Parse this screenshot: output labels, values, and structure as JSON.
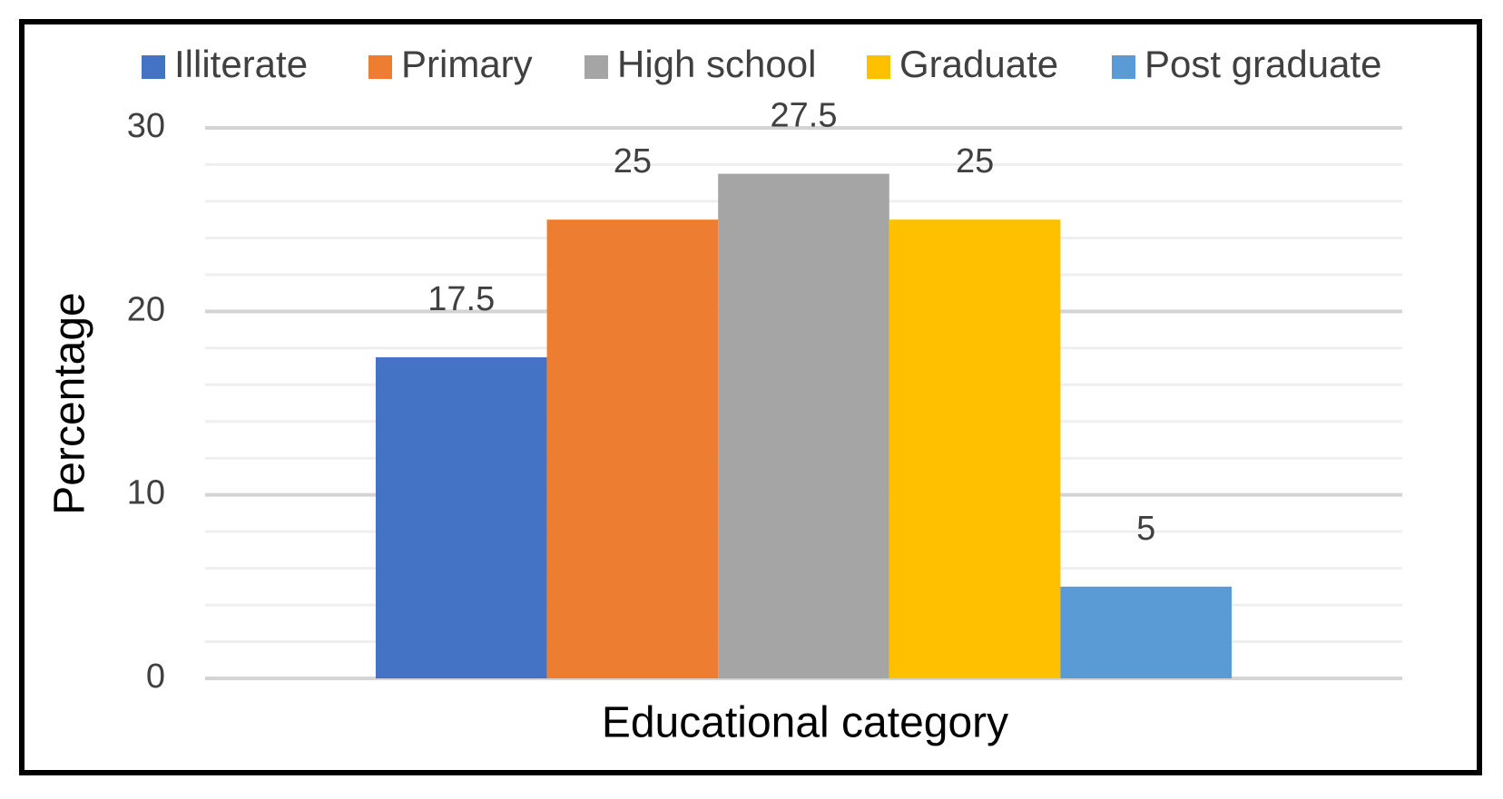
{
  "chart_data": {
    "type": "bar",
    "xlabel": "Educational category",
    "ylabel": "Percentage",
    "categories": [
      null
    ],
    "series": [
      {
        "name": "Illiterate",
        "color": "#4472c4",
        "values": [
          17.5
        ]
      },
      {
        "name": "Primary",
        "color": "#ed7d31",
        "values": [
          25
        ]
      },
      {
        "name": "High school",
        "color": "#a5a5a5",
        "values": [
          27.5
        ]
      },
      {
        "name": "Graduate",
        "color": "#ffc000",
        "values": [
          25
        ]
      },
      {
        "name": "Post graduate",
        "color": "#5b9bd5",
        "values": [
          5
        ]
      }
    ],
    "ylim": [
      0,
      30
    ],
    "yticks": [
      0,
      10,
      20,
      30
    ],
    "minor_yticks": [
      2,
      4,
      6,
      8,
      12,
      14,
      16,
      18,
      22,
      24,
      26,
      28
    ],
    "grid": true,
    "legend": "top"
  }
}
